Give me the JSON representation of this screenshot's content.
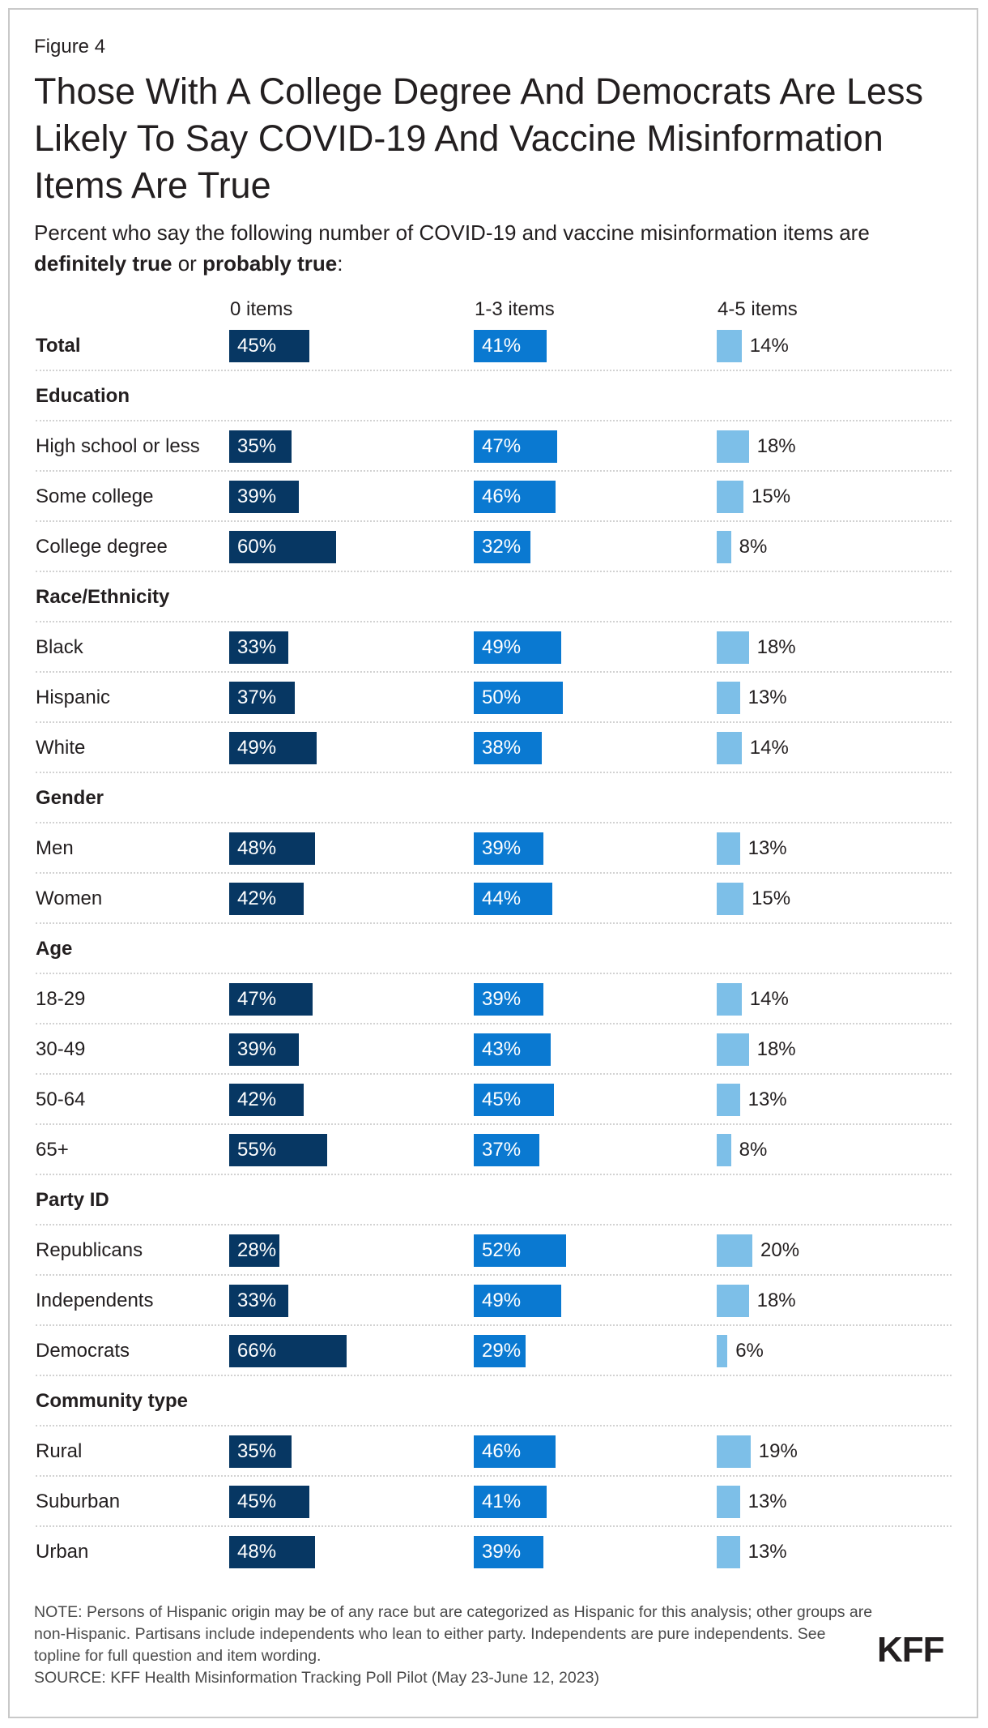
{
  "figure_label": "Figure 4",
  "title": "Those With A College Degree And Democrats Are Less Likely To Say COVID-19 And Vaccine Misinformation Items Are True",
  "subtitle": {
    "prefix": "Percent who say the following number of COVID-19 and vaccine misinformation items are ",
    "bold1": "definitely true",
    "middle": " or ",
    "bold2": "probably true",
    "suffix": ":"
  },
  "note": "NOTE: Persons of Hispanic origin may be of any race but are categorized as Hispanic for this analysis; other groups are non-Hispanic. Partisans include independents who lean to either party. Independents are pure independents. See topline for full question and item wording.",
  "source": "SOURCE: KFF Health Misinformation Tracking Poll Pilot (May 23-June 12, 2023)",
  "logo": "KFF",
  "colors": {
    "zero_items": "#073763",
    "one_to_three": "#0a79d1",
    "four_to_five": "#7dbfe8"
  },
  "chart_data": {
    "type": "bar",
    "orientation": "horizontal",
    "stacked": false,
    "column_headers": [
      "0 items",
      "1-3 items",
      "4-5 items"
    ],
    "rows": [
      {
        "type": "data",
        "label": "Total",
        "bold": true,
        "values": [
          45,
          41,
          14
        ]
      },
      {
        "type": "header",
        "label": "Education"
      },
      {
        "type": "data",
        "label": "High school or less",
        "values": [
          35,
          47,
          18
        ]
      },
      {
        "type": "data",
        "label": "Some college",
        "values": [
          39,
          46,
          15
        ]
      },
      {
        "type": "data",
        "label": "College degree",
        "values": [
          60,
          32,
          8
        ]
      },
      {
        "type": "header",
        "label": "Race/Ethnicity"
      },
      {
        "type": "data",
        "label": "Black",
        "values": [
          33,
          49,
          18
        ]
      },
      {
        "type": "data",
        "label": "Hispanic",
        "values": [
          37,
          50,
          13
        ]
      },
      {
        "type": "data",
        "label": "White",
        "values": [
          49,
          38,
          14
        ]
      },
      {
        "type": "header",
        "label": "Gender"
      },
      {
        "type": "data",
        "label": "Men",
        "values": [
          48,
          39,
          13
        ]
      },
      {
        "type": "data",
        "label": "Women",
        "values": [
          42,
          44,
          15
        ]
      },
      {
        "type": "header",
        "label": "Age"
      },
      {
        "type": "data",
        "label": "18-29",
        "values": [
          47,
          39,
          14
        ]
      },
      {
        "type": "data",
        "label": "30-49",
        "values": [
          39,
          43,
          18
        ]
      },
      {
        "type": "data",
        "label": "50-64",
        "values": [
          42,
          45,
          13
        ]
      },
      {
        "type": "data",
        "label": "65+",
        "values": [
          55,
          37,
          8
        ]
      },
      {
        "type": "header",
        "label": "Party ID"
      },
      {
        "type": "data",
        "label": "Republicans",
        "values": [
          28,
          52,
          20
        ]
      },
      {
        "type": "data",
        "label": "Independents",
        "values": [
          33,
          49,
          18
        ]
      },
      {
        "type": "data",
        "label": "Democrats",
        "values": [
          66,
          29,
          6
        ]
      },
      {
        "type": "header",
        "label": "Community type"
      },
      {
        "type": "data",
        "label": "Rural",
        "values": [
          35,
          46,
          19
        ]
      },
      {
        "type": "data",
        "label": "Suburban",
        "values": [
          45,
          41,
          13
        ]
      },
      {
        "type": "data",
        "label": "Urban",
        "values": [
          48,
          39,
          13
        ]
      }
    ],
    "value_suffix": "%"
  }
}
